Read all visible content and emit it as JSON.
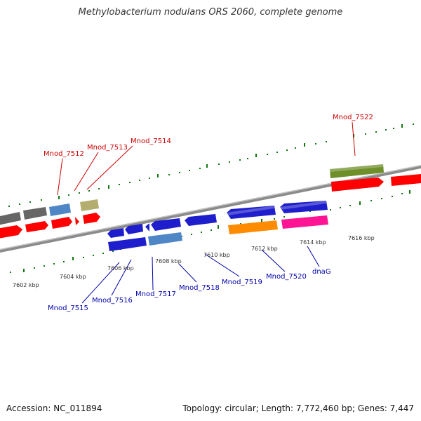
{
  "title": "Methylobacterium nodulans ORS 2060, complete genome",
  "footer": {
    "accession": "Accession: NC_011894",
    "summary": "Topology: circular; Length: 7,772,460 bp; Genes: 7,447"
  },
  "colors": {
    "forward_label": "#cc0000",
    "reverse_label": "#0000aa",
    "tick": "#117711",
    "backbone": "#888888"
  },
  "scale_labels": [
    "7602 kbp",
    "7604 kbp",
    "7606 kbp",
    "7608 kbp",
    "7610 kbp",
    "7612 kbp",
    "7614 kbp",
    "7616 kbp"
  ],
  "forward_labels": [
    "Mnod_7512",
    "Mnod_7513",
    "Mnod_7514",
    "Mnod_7522"
  ],
  "reverse_labels": [
    "Mnod_7515",
    "Mnod_7516",
    "Mnod_7517",
    "Mnod_7518",
    "Mnod_7519",
    "Mnod_7520",
    "dnaG"
  ]
}
